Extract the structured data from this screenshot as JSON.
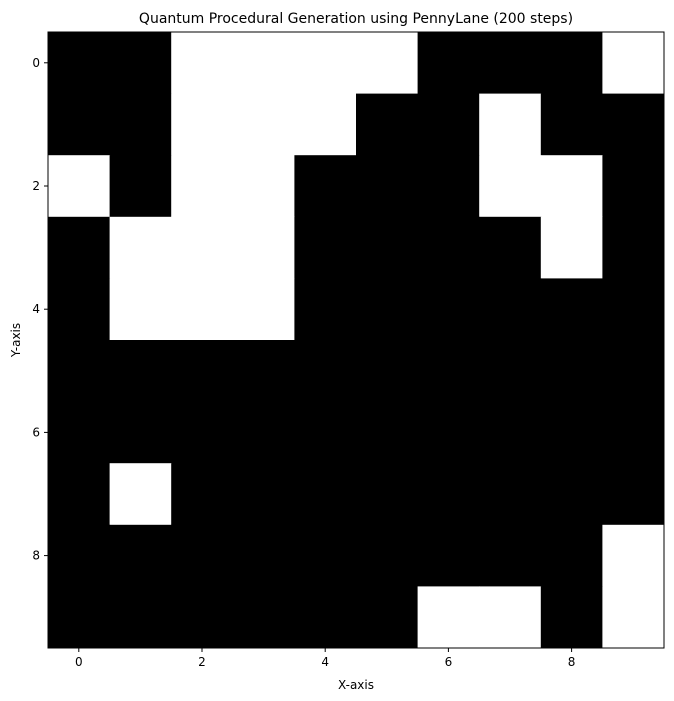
{
  "chart_data": {
    "type": "heatmap",
    "title": "Quantum Procedural Generation using PennyLane (200 steps)",
    "xlabel": "X-axis",
    "ylabel": "Y-axis",
    "xticks": [
      0,
      2,
      4,
      6,
      8
    ],
    "yticks": [
      0,
      2,
      4,
      6,
      8
    ],
    "xlim": [
      -0.5,
      9.5
    ],
    "ylim": [
      9.5,
      -0.5
    ],
    "colormap": {
      "0": "#000000",
      "1": "#ffffff"
    },
    "grid": false,
    "values": [
      [
        0,
        0,
        1,
        1,
        1,
        1,
        0,
        0,
        0,
        1
      ],
      [
        0,
        0,
        1,
        1,
        1,
        0,
        0,
        1,
        0,
        0
      ],
      [
        1,
        0,
        1,
        1,
        0,
        0,
        0,
        1,
        1,
        0
      ],
      [
        0,
        1,
        1,
        1,
        0,
        0,
        0,
        0,
        1,
        0
      ],
      [
        0,
        1,
        1,
        1,
        0,
        0,
        0,
        0,
        0,
        0
      ],
      [
        0,
        0,
        0,
        0,
        0,
        0,
        0,
        0,
        0,
        0
      ],
      [
        0,
        0,
        0,
        0,
        0,
        0,
        0,
        0,
        0,
        0
      ],
      [
        0,
        1,
        0,
        0,
        0,
        0,
        0,
        0,
        0,
        0
      ],
      [
        0,
        0,
        0,
        0,
        0,
        0,
        0,
        0,
        0,
        1
      ],
      [
        0,
        0,
        0,
        0,
        0,
        0,
        1,
        1,
        0,
        1
      ]
    ]
  }
}
